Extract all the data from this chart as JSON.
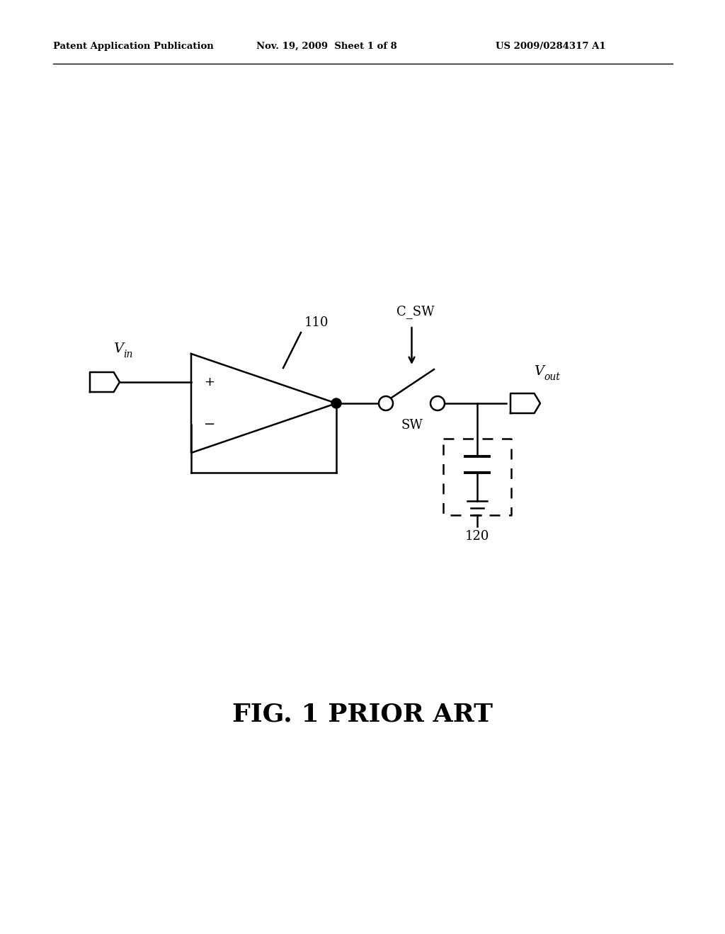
{
  "header_left": "Patent Application Publication",
  "header_mid": "Nov. 19, 2009  Sheet 1 of 8",
  "header_right": "US 2009/0284317 A1",
  "figure_label": "FIG. 1 PRIOR ART",
  "label_110": "110",
  "label_120": "120",
  "label_sw": "SW",
  "label_csw": "C_SW",
  "label_plus": "+",
  "label_minus": "−",
  "bg_color": "#ffffff",
  "line_color": "#000000"
}
